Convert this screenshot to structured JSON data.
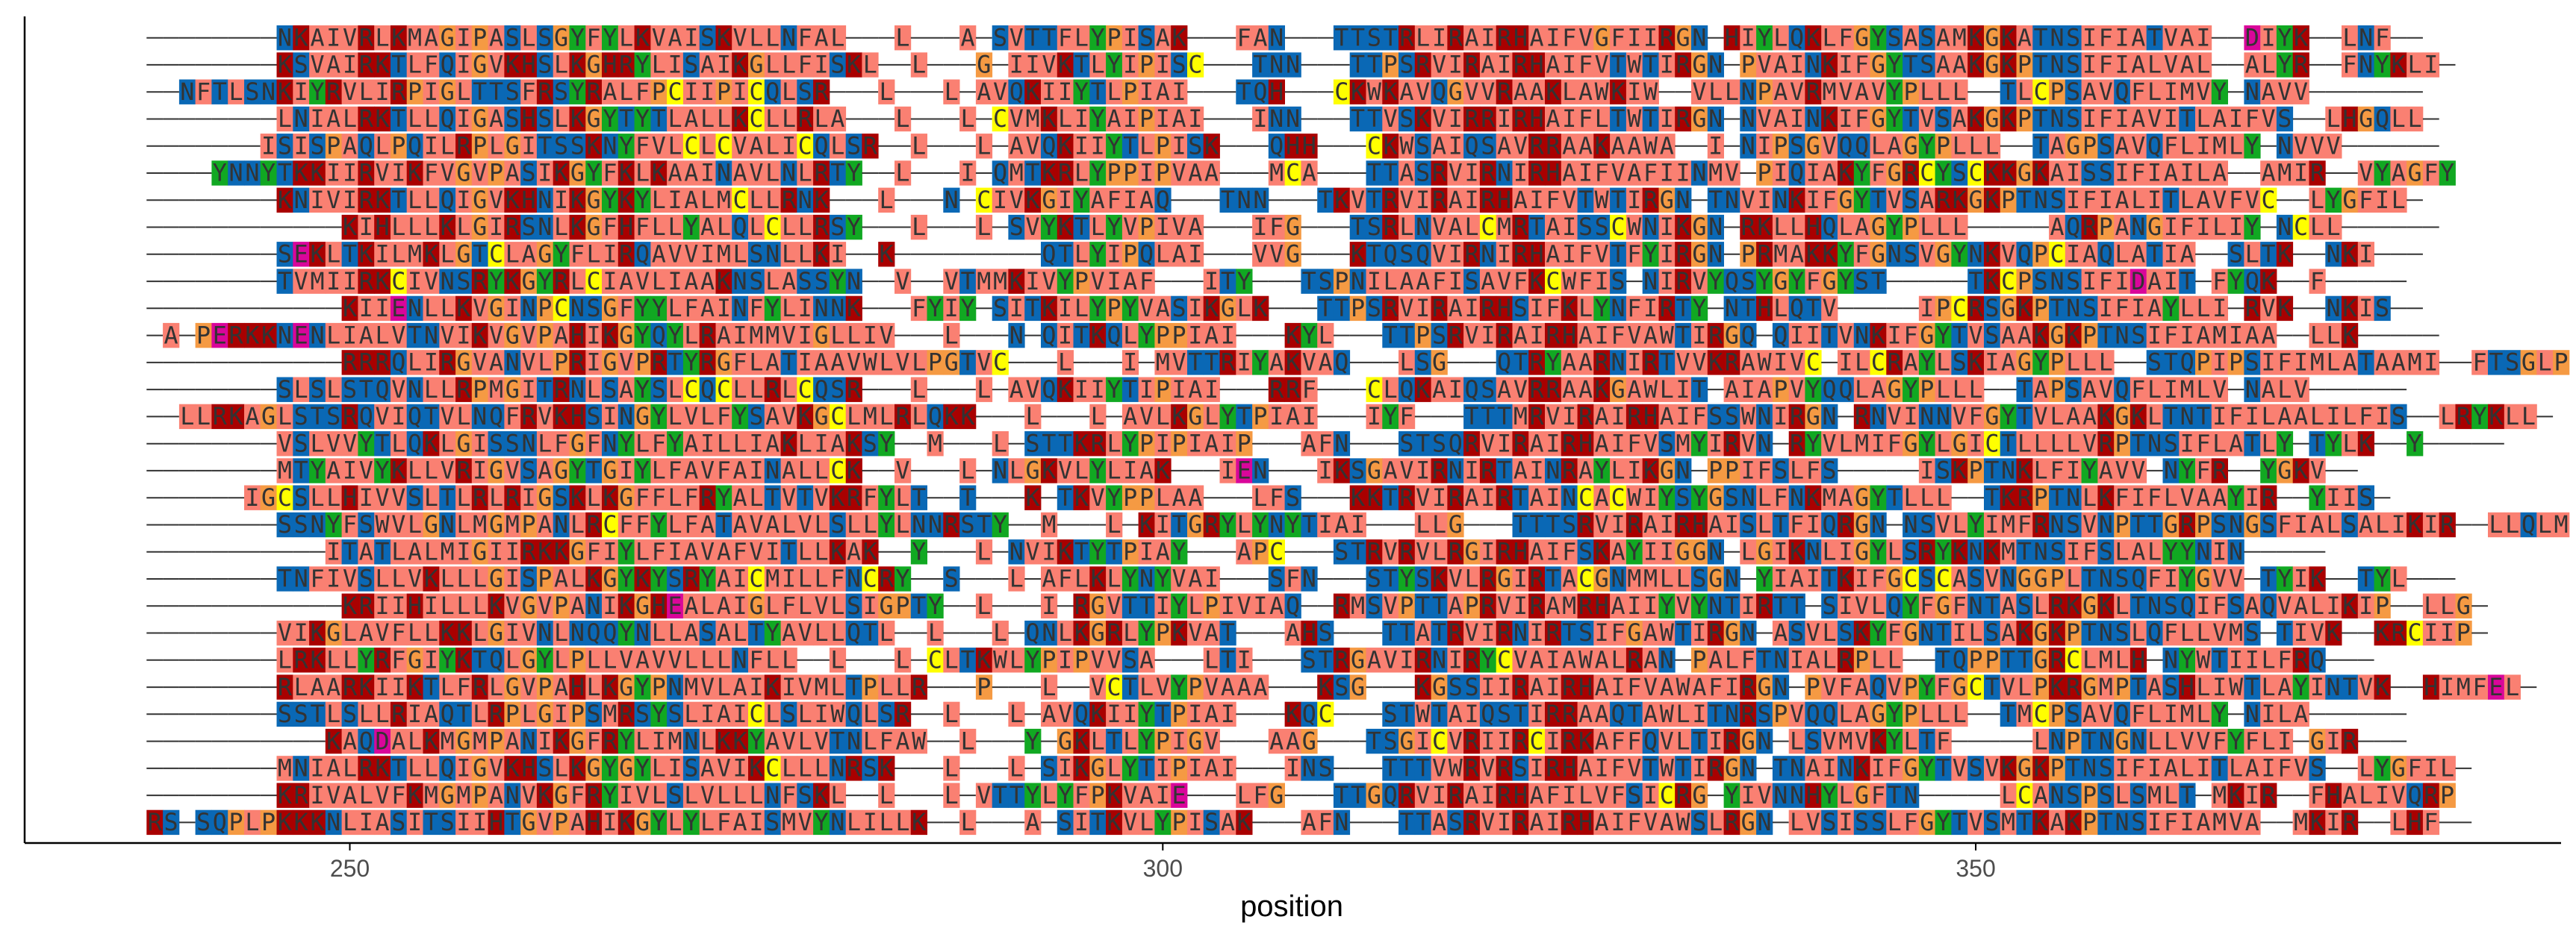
{
  "chart_data": {
    "type": "heatmap",
    "subtype": "multiple-sequence-alignment",
    "xlabel": "position",
    "ylabel": "",
    "xlim": [
      230,
      386
    ],
    "xticks": [
      250,
      300,
      350
    ],
    "tick_labels": [
      "250",
      "300",
      "350"
    ],
    "gap_char": "-",
    "grid": false,
    "legend": "none",
    "colors": {
      "A": "#fa8072",
      "V": "#fa8072",
      "L": "#fa8072",
      "I": "#fa8072",
      "M": "#fa8072",
      "F": "#fa8072",
      "W": "#fa8072",
      "K": "#a90000",
      "R": "#a90000",
      "H": "#a90000",
      "D": "#d9069a",
      "E": "#d9069a",
      "S": "#0a68b5",
      "T": "#0a68b5",
      "N": "#0a68b5",
      "Q": "#0a68b5",
      "G": "#f59a43",
      "P": "#f59a43",
      "C": "#ffff00",
      "Y": "#11a822",
      "gap": "#ffffff"
    },
    "row_start": 238,
    "sequences": [
      "--------NKAIVRLKMAGIPASLSGYFYLKVAISKVLLNFAL---L---A-SVTTFLYPISAK---FAN---TTSTRLIRAIRHAIFVGFIIRGN-HIYLQKLFGYSASAMKGKATNSIFIATVAI--DIYK--LNF--",
      "--------KSVAIRKTLFQIGVKHSLKGHRYLISAIKGLLFISKL--L---G-IIVKTLYIPISC---TNN---TTPSRVIRAIRHAIFVTWTIRGN-PVAINKIFGYTSAAKGKPTNSIFIALVAL--ALYR--FNYKLI-",
      "--NFTLSNKIYRVLIRPIGLTTSFRSYRALFPCIIPICQLSR---L---L-AVQKIIYTLPIAI---TQH---CKWKAVQGVVRAAKLAWKIW--VLLNPAVRMVAVYPLLL--TLCPSAVQFLIMVY-NAVV-------",
      "--------LNIALRKTLLQIGASHSLKGYTYTLALLKCLLRLA---L---L-CVMKLIYAIPIAI---INN---TTVSKVIRRIRHAIFLTWTIRGN-NVAINKIFGYTVSAKGKPTNSIFIAVITLAIFVS--LHGQLL-",
      "-------ISISPAQLPQILRPLGITSSKNYFVLCLCVALICQLSR--L---L-AVQKIIYTLPISK---QHH---CKWSAIQSAVRRAAKAAWA--I-NIPSGVQQLAGYPLLL--TAGPSAVQFLIMLY-NVVV------",
      "----YNNYTKKIIRVIKFVGVPASIKGYFKLKAAINAVLNLRTY--L---I-QMTKRLYPPIPVAA---MCA---TTASRVIRNIRHAIFVAFIINMV-PIQIAKYFGRCYSCKKGKAISSIFIAILA--AMIR--VYAGFY",
      "--------KNIVIRKTLLQIGVKHNIKGYKYLIALMCLLRNK---L---N-CIVKGIYAFIAQ---TNN---TKVTRVIRAIRHAIFVTWTIRGN-TNVINKIFGYTVSARKGKPTNSIFIALITLAVFVC--LYGFIL-",
      "------------KIHLLLKLGIRSNLKGFHFLLYALQLCLLRSY---L---L-SVYKTLYVPIVA---IFG---TSRLNVALCMRTAISSCWNIKGN-RKLLHQLAGYPLLL-----AQRPANGIFILIY-NCLL------",
      "--------SEKLTKILMKLGTCLAGYFLIRQAVVIMLSNLLKI--K---------QTLYIPQLAI---VVG---KTQSQVIRNIRHAIFVTFYIRGN-PRMAKKYFGNSVGYNKVQPCIAQLATIA--SLTK--NKI---",
      "--------TVMIIRKCIVNSRYKGYRLCIAVLIAAKNSLASSYN--V--VTMMKIVYPVIAF---ITY---TSPNILAAFISAVFKCWFIS-NIRVYQSYGYFGYST-----TKCPSNSIFIDAIT-FYQK--F-----",
      "------------KIIENLLKVGINPCNSGFYYLFAINFYLINNK---FYIY-SITKILYPYVASIKGLK---TTPSRVIRAIRHSIFKLYNFIRTY-NTHLQTV-----IPCRSGKPTNSIFIAYLLI-RVK--NKIS--",
      "-A-PERKKNENLIALVTNVIKVGVPAHIKGYQYLRAIMMVIGLLIV---L---N-QITKQLYPPIAI---KYL---TTPSRVIRAIRHAIFVAWTIRGQ-QIITVNKIFGYTVSAAKGKPTNSIFIAMIAA--LLK-----",
      "------------RRRQLIRGVANVLPRIGVPRTYRGFLATIAAVWLVLPGTVC---L---I-MVTTRIYAKVAQ---LSG---QTRYAARNIRTVVKRAWIVC-ILCRAYLSKIAGYPLLL--STQPIPSIFIMLATAAMI--FTSGLP",
      "--------SLSLSTQVNLLRPMGITRNLSAYSLCQCLLRLCQSR---L---L-AVQKIIYTIPIAI---RRF---CLQKAIQSAVRRAAKGAWLIT-AIAPVYQQLAGYPLLL--TAPSAVQFLIMLV-NALV------",
      "--LLRKAGLSTSRQVIQTVLNQFRVKHSINGYLVLFYSAVKGCLMLRLQKK---L---L-AVLKGLYTPIAI---IYF---TTTMRVIRAIRHAIFSSWNIRGN-RNVINNVFGYTVLAAKGKLTNTIFILAALILFIS--LRYKLL-",
      "--------VSLVVYTLQKLGISSNLFGFNYLFYAILLIAKLIAKSY--M---L-STTKRLYPIPIAIP---AFN---STSQRVIRAIRHAIFVSMYIRVN-RYVLMIFGYLGICTLLLLVRPTNSIFLATLY-TYLK--Y-----",
      "--------MTYAIVYKLLVRIGVSAGYTGIYLFAVFAINALLCK--V---L-NLGKVLYLIAK---IEN---IKSGAVIRNIRTAINRAYLIKGN-PPIFSLFS-----ISKPTNKLFIYAVV-NYFR--YGKV--",
      "------IGCSLLHIVVSLTLRLRIGSKLKGFFLFRYALTVTVKRFYLT--T---K-TKVYPPLAA---LFS---KKTRVIRAIRTAINCACWIYSYGSNLFNKMAGYTLLL--TKRPTNLKFIFLVAAYIR--YIIS-",
      "--------SSNYFSWVLGNLMGMPANLRCFFYLFATAVALVLSLLYLNNRSTY--M---L-KITGRYLYNYTIAI---LLG---TTTSRVIRAIRHAISLTFIQRGN-NSVLYIMFRNSVNPTTGRPSNGSFIALSALIKIR--LLQLMKQ",
      "-----------ITATLALMIGIIRKKGFIYLFIAVAFVITLLKAK--Y---L-NVIKTYTPIAY---APC---STRVRVLRGIRHAIFSKAYIIGGN-LGIKNLIGYLSRYKNKMTNSIFSLALYYNIN-----",
      "--------TNFIVSLLVKLLLGISPALKGYKYSRYAICMILLFNCRY--S---L-AFLKLYNYVAI---SFN---STYSKVLRGIRTACGNMMLLSGN-YIAITKIFGCSCASVNGGPLTNSQFIYGVV-TYIK--TYL---",
      "------------KRIIHILLLKVGVPANIKGHEALAIGLFLVLSIGPTY--L---I-RGVTTIYLPIVIAQ--RMSVPTTAPRVIRAMRHAIIYVYNTIRTT-SIVLQYFGFNTASLRKGKLTNSQIFSAQVALIKIP--LLG-",
      "--------VIKGLAVFLLKKLGIVNLNQQYNLLASALTYAVLLQTL--L---L-QNLKGRLYPKVAT---AHS---TTATRVIRNIRTSIFGAWTIRGN-ASVLSKYFGNTILSAKGKPTNSLQFLLVMS-TIVK--KRCIIP-",
      "--------LRKLLYRFGIYKTQLGYLPLLVAVVLLLNFLL--L---L-CLTKWLYPIPVVSA---LTI---STRGAVIRNIRYCVAIAWALRAN-PALFTNIALRPLL--TQPPTTGRCLMLH-NYWTIILFRQ---",
      "--------RLAARKIIKTLFRLGVPAHLKGYPNMVLAIKIVMLTPLLR---P---L--VCTLVYPVAAA---KSG---KGSSIIRAIRHAIFVAWAFIRGN-PVFAQVPYFGCTVLPKRGMPTASHLIWTLAYINTVK--HIMFEL-",
      "--------SSTLSLLRIAQTLRPLGIPSMRSYSLIAICLSLIWQLSR--L---L-AVQKIIYTPIAI---KQC---STWTAIQSTIRRAAQTAWLITNRSPVQQLAGYPLLL--TMCPSAVQFLIMLY-NILA------",
      "-----------KAQDALKMGMPANIKGFRYLIMNLKKYAVLVTNLFAW--L---Y-GKLTLYPIGV---AAG---TSGICVRIIRCIRKAFFQVLTIRGN-LSVMVKYLTF-----LNPTNGNLLVVFYFLI-GIR---",
      "--------MNIALRKTLLQIGVKHSLKGYGYLISAVIKCLLLNRSK---L---L-SIKGLYTIPIAI---INS---TTTVWRVRSIRHAIFVTWTIRGN-TNAINKIFGYTVSVKGKPTNSIFIALITLAIFVS--LYGFIL-",
      "--------KRIVALVFKMGMPANVKGFRYIVLSLVLLLNFSKL--L---L-VTTYLYFPKVAIE---LFG---TTGQRVIRAIRHAFILVFSICRG-YIVNNHYLGFTN-----LCANSPSLSMLT-MKIR--FHALIVQRP",
      "RS-SQPLPKKKNLIASITSIIHTGVPAHIKGYLYLFAISMVYNLILLK--L---A-SITKVLYPISAK---AFN---TTASRVIRAIRHAIFVAWSLRGN-LVSISSLFGYTVSMTKAKPTNSIFIAMVA--MKIR--LHF--"
    ]
  }
}
